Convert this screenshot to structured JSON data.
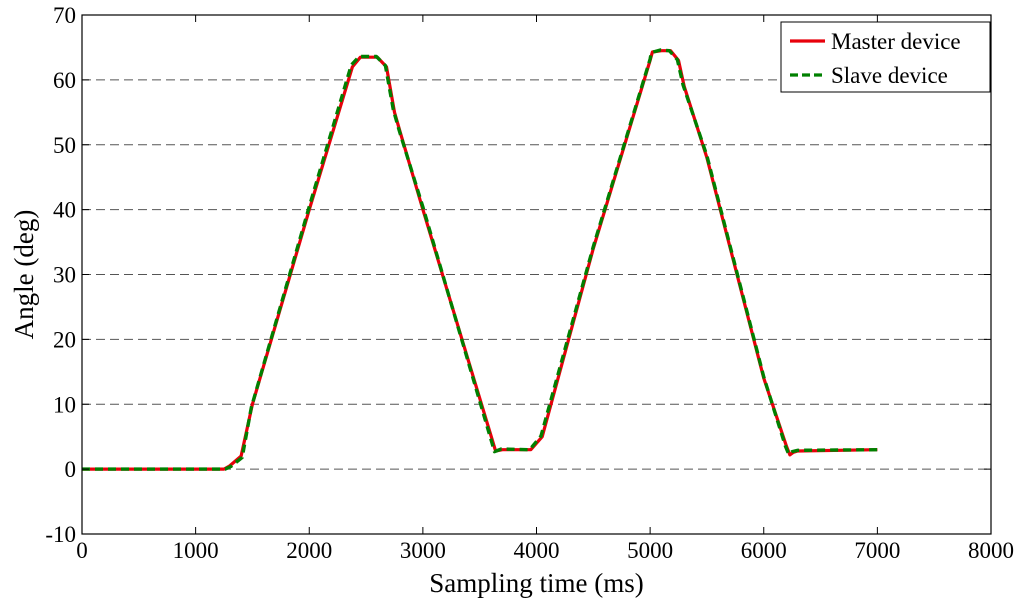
{
  "chart_data": {
    "type": "line",
    "title": "",
    "xlabel": "Sampling time (ms)",
    "ylabel": "Angle (deg)",
    "xlim": [
      0,
      8000
    ],
    "ylim": [
      -10,
      70
    ],
    "x_ticks": [
      0,
      1000,
      2000,
      3000,
      4000,
      5000,
      6000,
      7000,
      8000
    ],
    "y_ticks": [
      -10,
      0,
      10,
      20,
      30,
      40,
      50,
      60,
      70
    ],
    "x_tick_labels": [
      "0",
      "1000",
      "2000",
      "3000",
      "4000",
      "5000",
      "6000",
      "7000",
      "8000"
    ],
    "y_tick_labels": [
      "-10",
      "0",
      "10",
      "20",
      "30",
      "40",
      "50",
      "60",
      "70"
    ],
    "grid": "horizontal-dashed",
    "legend_position": "top-right",
    "series": [
      {
        "name": "Master device",
        "color": "#e8000b",
        "style": "solid",
        "x": [
          0,
          1250,
          1300,
          1400,
          1500,
          2000,
          2380,
          2450,
          2600,
          2680,
          2750,
          2800,
          3000,
          3640,
          3700,
          3950,
          4050,
          4500,
          5000,
          5020,
          5100,
          5180,
          5250,
          5300,
          5500,
          6000,
          6200,
          6230,
          6260,
          6300,
          7000
        ],
        "y": [
          0,
          0,
          0.5,
          2,
          10,
          40,
          62,
          63.5,
          63.5,
          62,
          55,
          52,
          40,
          2.8,
          3,
          3,
          5,
          34,
          63,
          64.3,
          64.5,
          64.5,
          63,
          59,
          48,
          14,
          3.5,
          2.2,
          2.6,
          2.8,
          3
        ]
      },
      {
        "name": "Slave device",
        "color": "#008000",
        "style": "dashed",
        "x": [
          0,
          1260,
          1310,
          1410,
          1490,
          2000,
          2370,
          2440,
          2590,
          2670,
          2740,
          2790,
          3000,
          3630,
          3690,
          3940,
          4040,
          4500,
          5000,
          5010,
          5090,
          5170,
          5240,
          5290,
          5500,
          6000,
          6190,
          6220,
          6250,
          6300,
          7000
        ],
        "y": [
          0,
          0,
          0.4,
          1.8,
          9.5,
          40.5,
          62.3,
          63.6,
          63.6,
          62.2,
          55.4,
          52.3,
          40.4,
          2.7,
          3.1,
          3,
          5.1,
          34.3,
          63.2,
          64.2,
          64.6,
          64.5,
          63.1,
          59.2,
          48.3,
          14.2,
          3.6,
          2.3,
          2.7,
          2.9,
          3
        ]
      }
    ]
  }
}
